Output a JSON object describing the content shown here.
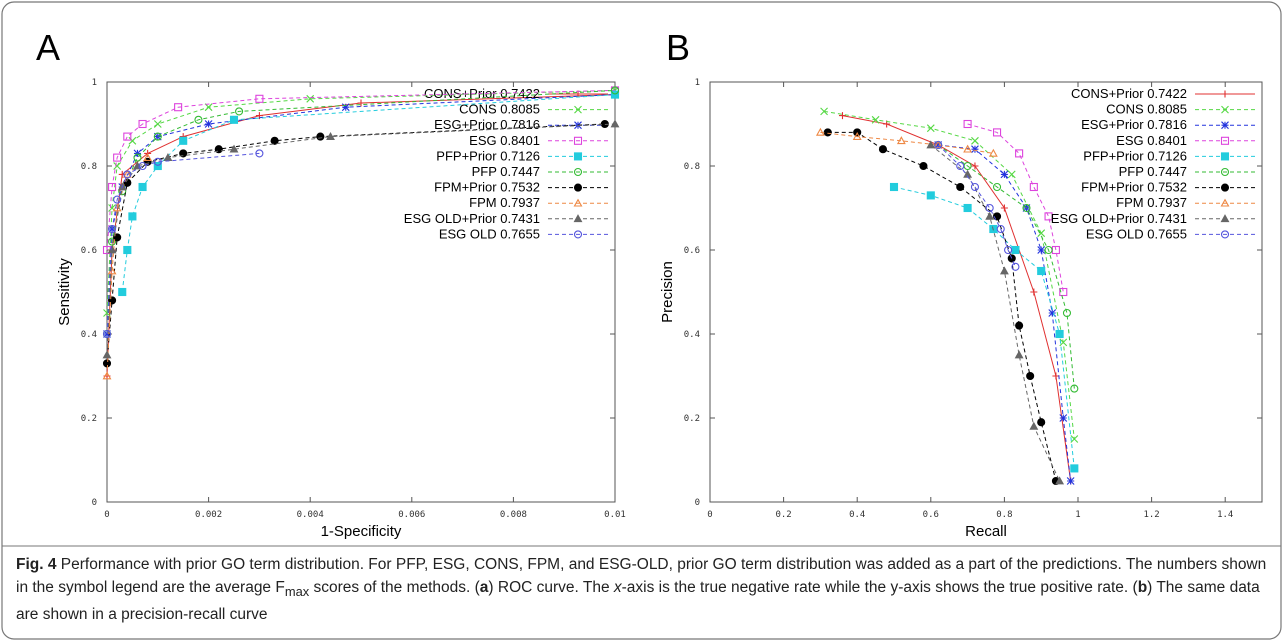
{
  "chart_data": [
    {
      "type": "line",
      "panel_label": "A",
      "xlabel": "1-Specificity",
      "ylabel": "Sensitivity",
      "xlim": [
        0,
        0.01
      ],
      "xticks": [
        0,
        0.002,
        0.004,
        0.006,
        0.008,
        0.01
      ],
      "ylim": [
        0,
        1
      ],
      "yticks": [
        0,
        0.2,
        0.4,
        0.6,
        0.8,
        1
      ],
      "legend": "upper right",
      "series": [
        {
          "name": "CONS+Prior 0.7422",
          "color": "#e03030",
          "marker": "plus",
          "line_style": "solid",
          "x": [
            0,
            0.0001,
            0.0003,
            0.0008,
            0.0015,
            0.003,
            0.005,
            0.01
          ],
          "values": [
            0.3,
            0.6,
            0.78,
            0.83,
            0.87,
            0.92,
            0.95,
            0.97
          ]
        },
        {
          "name": "CONS 0.8085",
          "color": "#55d844",
          "marker": "cross",
          "line_style": "dashed",
          "x": [
            0,
            0.0001,
            0.0002,
            0.0005,
            0.001,
            0.002,
            0.004,
            0.01
          ],
          "values": [
            0.45,
            0.7,
            0.8,
            0.86,
            0.9,
            0.94,
            0.96,
            0.98
          ]
        },
        {
          "name": "ESG+Prior 0.7816",
          "color": "#2233dd",
          "marker": "star",
          "line_style": "dashed",
          "x": [
            0,
            0.0001,
            0.0003,
            0.0006,
            0.001,
            0.002,
            0.0047,
            0.01
          ],
          "values": [
            0.4,
            0.65,
            0.75,
            0.83,
            0.87,
            0.9,
            0.94,
            0.97
          ]
        },
        {
          "name": "ESG 0.8401",
          "color": "#dd44dd",
          "marker": "square-open",
          "line_style": "dashed",
          "x": [
            0,
            0.0001,
            0.0002,
            0.0004,
            0.0007,
            0.0014,
            0.003,
            0.01
          ],
          "values": [
            0.6,
            0.75,
            0.82,
            0.87,
            0.9,
            0.94,
            0.96,
            0.98
          ]
        },
        {
          "name": "PFP+Prior 0.7126",
          "color": "#22ccdd",
          "marker": "square",
          "line_style": "dashed",
          "x": [
            0.0003,
            0.0004,
            0.0005,
            0.0007,
            0.001,
            0.0015,
            0.0025,
            0.01
          ],
          "values": [
            0.5,
            0.6,
            0.68,
            0.75,
            0.8,
            0.86,
            0.91,
            0.97
          ]
        },
        {
          "name": "PFP 0.7447",
          "color": "#33bb33",
          "marker": "circle-open",
          "line_style": "dashed",
          "x": [
            0,
            0.0001,
            0.0003,
            0.0006,
            0.001,
            0.0018,
            0.0026,
            0.01
          ],
          "values": [
            0.4,
            0.62,
            0.74,
            0.82,
            0.87,
            0.91,
            0.93,
            0.98
          ]
        },
        {
          "name": "FPM+Prior 0.7532",
          "color": "#000000",
          "marker": "circle",
          "line_style": "dashed",
          "x": [
            0,
            0.0001,
            0.0002,
            0.0004,
            0.0008,
            0.0015,
            0.0022,
            0.0033,
            0.0042,
            0.0098
          ],
          "values": [
            0.33,
            0.48,
            0.63,
            0.76,
            0.81,
            0.83,
            0.84,
            0.86,
            0.87,
            0.9
          ]
        },
        {
          "name": "FPM 0.7937",
          "color": "#ee8844",
          "marker": "triangle-open",
          "line_style": "dashed",
          "x": [
            0,
            0.0001,
            0.0002,
            0.0004,
            0.0008
          ],
          "values": [
            0.3,
            0.55,
            0.7,
            0.78,
            0.82
          ]
        },
        {
          "name": "ESG OLD+Prior 0.7431",
          "color": "#666666",
          "marker": "triangle",
          "line_style": "dashed",
          "x": [
            0,
            0.0001,
            0.0003,
            0.0006,
            0.0012,
            0.0025,
            0.0044,
            0.01
          ],
          "values": [
            0.35,
            0.6,
            0.75,
            0.8,
            0.82,
            0.84,
            0.87,
            0.9
          ]
        },
        {
          "name": "ESG OLD 0.7655",
          "color": "#5555dd",
          "marker": "circle-open",
          "line_style": "dashed",
          "x": [
            0,
            0.0001,
            0.0002,
            0.0004,
            0.0007,
            0.001,
            0.003
          ],
          "values": [
            0.4,
            0.65,
            0.72,
            0.78,
            0.8,
            0.81,
            0.83
          ]
        }
      ]
    },
    {
      "type": "line",
      "panel_label": "B",
      "xlabel": "Recall",
      "ylabel": "Precision",
      "xlim": [
        0,
        1.5
      ],
      "xticks": [
        0,
        0.2,
        0.4,
        0.6,
        0.8,
        1,
        1.2,
        1.4
      ],
      "ylim": [
        0,
        1
      ],
      "yticks": [
        0,
        0.2,
        0.4,
        0.6,
        0.8,
        1
      ],
      "legend": "upper right",
      "series": [
        {
          "name": "CONS+Prior 0.7422",
          "color": "#e03030",
          "marker": "plus",
          "line_style": "solid",
          "x": [
            0.36,
            0.48,
            0.62,
            0.72,
            0.8,
            0.88,
            0.94,
            0.98
          ],
          "values": [
            0.92,
            0.9,
            0.85,
            0.8,
            0.7,
            0.5,
            0.3,
            0.05
          ]
        },
        {
          "name": "CONS 0.8085",
          "color": "#55d844",
          "marker": "cross",
          "line_style": "dashed",
          "x": [
            0.31,
            0.45,
            0.6,
            0.72,
            0.82,
            0.9,
            0.96,
            0.99
          ],
          "values": [
            0.93,
            0.91,
            0.89,
            0.86,
            0.78,
            0.64,
            0.38,
            0.15
          ]
        },
        {
          "name": "ESG+Prior 0.7816",
          "color": "#2233dd",
          "marker": "star",
          "line_style": "dashed",
          "x": [
            0.62,
            0.72,
            0.8,
            0.86,
            0.9,
            0.93,
            0.96,
            0.98
          ],
          "values": [
            0.85,
            0.84,
            0.78,
            0.7,
            0.6,
            0.45,
            0.2,
            0.05
          ]
        },
        {
          "name": "ESG 0.8401",
          "color": "#dd44dd",
          "marker": "square-open",
          "line_style": "dashed",
          "x": [
            0.7,
            0.78,
            0.84,
            0.88,
            0.92,
            0.94,
            0.96
          ],
          "values": [
            0.9,
            0.88,
            0.83,
            0.75,
            0.68,
            0.6,
            0.5
          ]
        },
        {
          "name": "PFP+Prior 0.7126",
          "color": "#22ccdd",
          "marker": "square",
          "line_style": "dashed",
          "x": [
            0.5,
            0.6,
            0.7,
            0.77,
            0.83,
            0.9,
            0.95,
            0.99
          ],
          "values": [
            0.75,
            0.73,
            0.7,
            0.65,
            0.6,
            0.55,
            0.4,
            0.08
          ]
        },
        {
          "name": "PFP 0.7447",
          "color": "#33bb33",
          "marker": "circle-open",
          "line_style": "dashed",
          "x": [
            0.62,
            0.7,
            0.78,
            0.86,
            0.92,
            0.97,
            0.99
          ],
          "values": [
            0.85,
            0.8,
            0.75,
            0.7,
            0.6,
            0.45,
            0.27
          ]
        },
        {
          "name": "FPM+Prior 0.7532",
          "color": "#000000",
          "marker": "circle",
          "line_style": "dashed",
          "x": [
            0.32,
            0.4,
            0.47,
            0.58,
            0.68,
            0.78,
            0.82,
            0.84,
            0.87,
            0.9,
            0.94
          ],
          "values": [
            0.88,
            0.88,
            0.84,
            0.8,
            0.75,
            0.68,
            0.58,
            0.42,
            0.3,
            0.19,
            0.05
          ]
        },
        {
          "name": "FPM 0.7937",
          "color": "#ee8844",
          "marker": "triangle-open",
          "line_style": "dashed",
          "x": [
            0.3,
            0.4,
            0.52,
            0.62,
            0.7,
            0.77
          ],
          "values": [
            0.88,
            0.87,
            0.86,
            0.85,
            0.84,
            0.83
          ]
        },
        {
          "name": "ESG OLD+Prior 0.7431",
          "color": "#666666",
          "marker": "triangle",
          "line_style": "dashed",
          "x": [
            0.6,
            0.7,
            0.76,
            0.8,
            0.84,
            0.88,
            0.95
          ],
          "values": [
            0.85,
            0.78,
            0.68,
            0.55,
            0.35,
            0.18,
            0.05
          ]
        },
        {
          "name": "ESG OLD 0.7655",
          "color": "#5555dd",
          "marker": "circle-open",
          "line_style": "dashed",
          "x": [
            0.62,
            0.68,
            0.72,
            0.76,
            0.79,
            0.81,
            0.83
          ],
          "values": [
            0.85,
            0.8,
            0.75,
            0.7,
            0.65,
            0.6,
            0.56
          ]
        }
      ]
    }
  ],
  "caption": [
    "Fig. 4",
    " Performance with prior GO term distribution. For PFP, ESG, CONS, FPM, and ESG-OLD, prior GO term distribution was added as a part of the predictions. The numbers shown in the symbol legend are the average F",
    "max",
    " scores of the methods. (",
    "a",
    ") ROC curve. The ",
    "x",
    "-axis is the true negative rate while the y-axis shows the true positive rate. (",
    "b",
    ") The same data are shown in a precision-recall curve"
  ]
}
